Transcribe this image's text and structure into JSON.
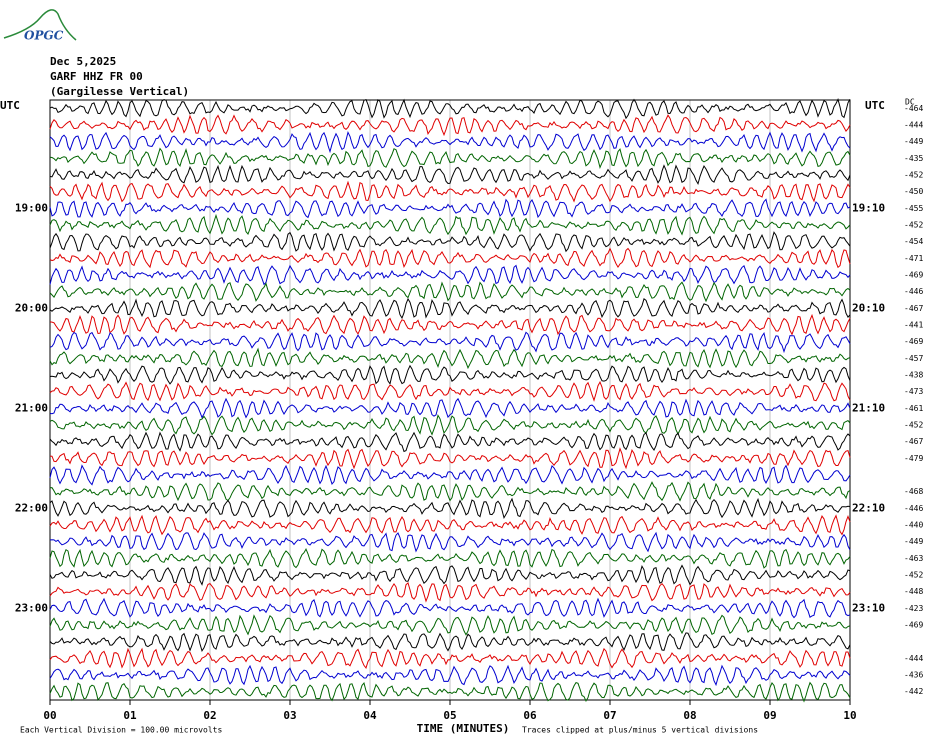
{
  "logo": "OPGC",
  "header": {
    "date": "Dec 5,2025",
    "station": "GARF HHZ FR 00",
    "name": "(Gargilesse Vertical)"
  },
  "left_axis": {
    "unit": "UTC",
    "labels": [
      "19:00",
      "20:00",
      "21:00",
      "22:00",
      "23:00"
    ]
  },
  "right_axis": {
    "unit": "UTC",
    "labels": [
      "19:10",
      "20:10",
      "21:10",
      "22:10",
      "23:10"
    ],
    "dc_title": "DC",
    "dc_offsets": [
      "-464",
      "-444",
      "-449",
      "-435",
      "-452",
      "-450",
      "-455",
      "-452",
      "-454",
      "-471",
      "-469",
      "-446",
      "-467",
      "-441",
      "-469",
      "-457",
      "-438",
      "-473",
      "-461",
      "-452",
      "-467",
      "-479",
      null,
      "-468",
      "-446",
      "-440",
      "-449",
      "-463",
      "-452",
      "-448",
      "-423",
      "-469",
      null,
      "-444",
      "-436",
      "-442"
    ]
  },
  "x_axis": {
    "title": "TIME (MINUTES)",
    "labels": [
      "00",
      "01",
      "02",
      "03",
      "04",
      "05",
      "06",
      "07",
      "08",
      "09",
      "10"
    ]
  },
  "footer": {
    "scale_note": "Each Vertical Division =  100.00 microvolts",
    "clip_note": "Traces clipped at plus/minus 5 vertical divisions"
  },
  "trace_colors": [
    "#000000",
    "#e00000",
    "#0000d0",
    "#006400"
  ]
}
